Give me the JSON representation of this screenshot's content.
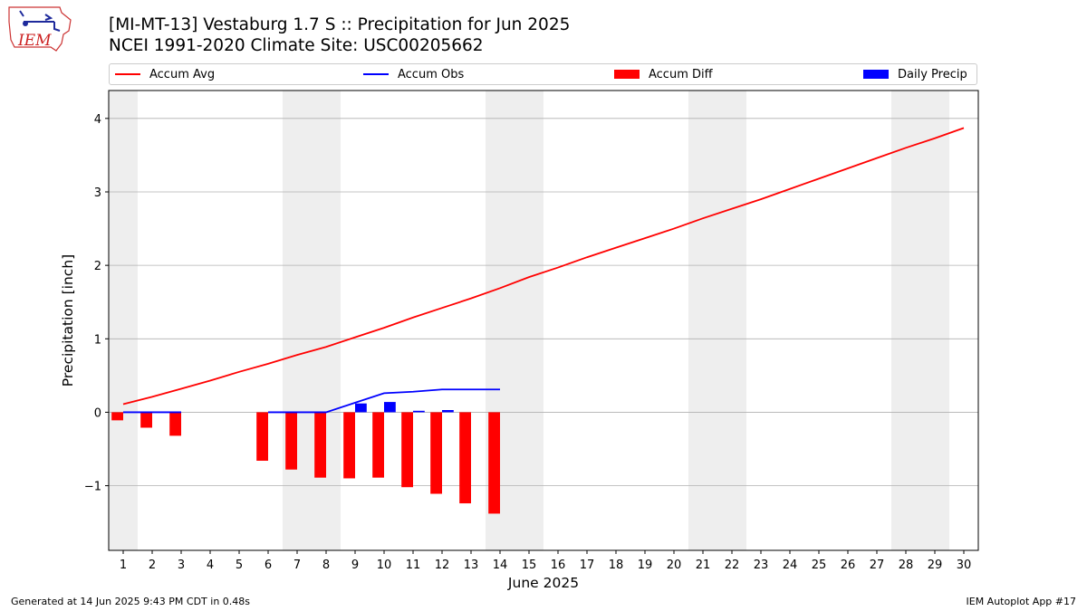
{
  "title_line1": "[MI-MT-13] Vestaburg 1.7 S :: Precipitation for Jun 2025",
  "title_line2": "NCEI 1991-2020 Climate Site: USC00205662",
  "logo_text": "IEM",
  "footer": {
    "left": "Generated at 14 Jun 2025 9:43 PM CDT in 0.48s",
    "right": "IEM Autoplot App #17"
  },
  "colors": {
    "avg": "#ff0000",
    "obs": "#0000ff",
    "diff": "#ff0000",
    "daily": "#0000ff",
    "weekend_band": "#eeeeee",
    "grid": "#b0b0b0"
  },
  "chart_data": {
    "type": "bar",
    "xlabel": "June 2025",
    "ylabel": "Precipitation [inch]",
    "x": [
      1,
      2,
      3,
      4,
      5,
      6,
      7,
      8,
      9,
      10,
      11,
      12,
      13,
      14,
      15,
      16,
      17,
      18,
      19,
      20,
      21,
      22,
      23,
      24,
      25,
      26,
      27,
      28,
      29,
      30
    ],
    "xlim": [
      0.5,
      30.5
    ],
    "ylim": [
      -1.88,
      4.38
    ],
    "yticks": [
      -1,
      0,
      1,
      2,
      3,
      4
    ],
    "ytick_labels": [
      "−1",
      "0",
      "1",
      "2",
      "3",
      "4"
    ],
    "grid": "horizontal",
    "legend_position": "top",
    "weekend_bands": [
      [
        0.5,
        1.5
      ],
      [
        6.5,
        8.5
      ],
      [
        13.5,
        15.5
      ],
      [
        20.5,
        22.5
      ],
      [
        27.5,
        29.5
      ]
    ],
    "series": [
      {
        "name": "Accum Avg",
        "kind": "line",
        "x": [
          1,
          2,
          3,
          4,
          5,
          6,
          7,
          8,
          9,
          10,
          11,
          12,
          13,
          14,
          15,
          16,
          17,
          18,
          19,
          20,
          21,
          22,
          23,
          24,
          25,
          26,
          27,
          28,
          29,
          30
        ],
        "values": [
          0.11,
          0.21,
          0.32,
          0.43,
          0.55,
          0.66,
          0.78,
          0.89,
          1.02,
          1.15,
          1.29,
          1.42,
          1.55,
          1.69,
          1.84,
          1.97,
          2.11,
          2.24,
          2.37,
          2.5,
          2.64,
          2.77,
          2.9,
          3.04,
          3.18,
          3.32,
          3.46,
          3.6,
          3.73,
          3.87
        ]
      },
      {
        "name": "Accum Obs",
        "kind": "line",
        "segments": [
          {
            "x": [
              1,
              2,
              3
            ],
            "values": [
              0,
              0,
              0
            ]
          },
          {
            "x": [
              6,
              7,
              8,
              9,
              10,
              11,
              12,
              13,
              14
            ],
            "values": [
              0,
              0,
              0,
              0.13,
              0.26,
              0.28,
              0.31,
              0.31,
              0.31
            ]
          }
        ]
      },
      {
        "name": "Accum Diff",
        "kind": "bar",
        "offset": -0.2,
        "x": [
          1,
          2,
          3,
          6,
          7,
          8,
          9,
          10,
          11,
          12,
          13,
          14
        ],
        "values": [
          -0.11,
          -0.21,
          -0.32,
          -0.66,
          -0.78,
          -0.89,
          -0.9,
          -0.89,
          -1.02,
          -1.11,
          -1.24,
          -1.38
        ]
      },
      {
        "name": "Daily Precip",
        "kind": "bar",
        "offset": 0.2,
        "x": [
          9,
          10,
          11,
          12
        ],
        "values": [
          0.12,
          0.14,
          0.02,
          0.03
        ]
      }
    ]
  }
}
